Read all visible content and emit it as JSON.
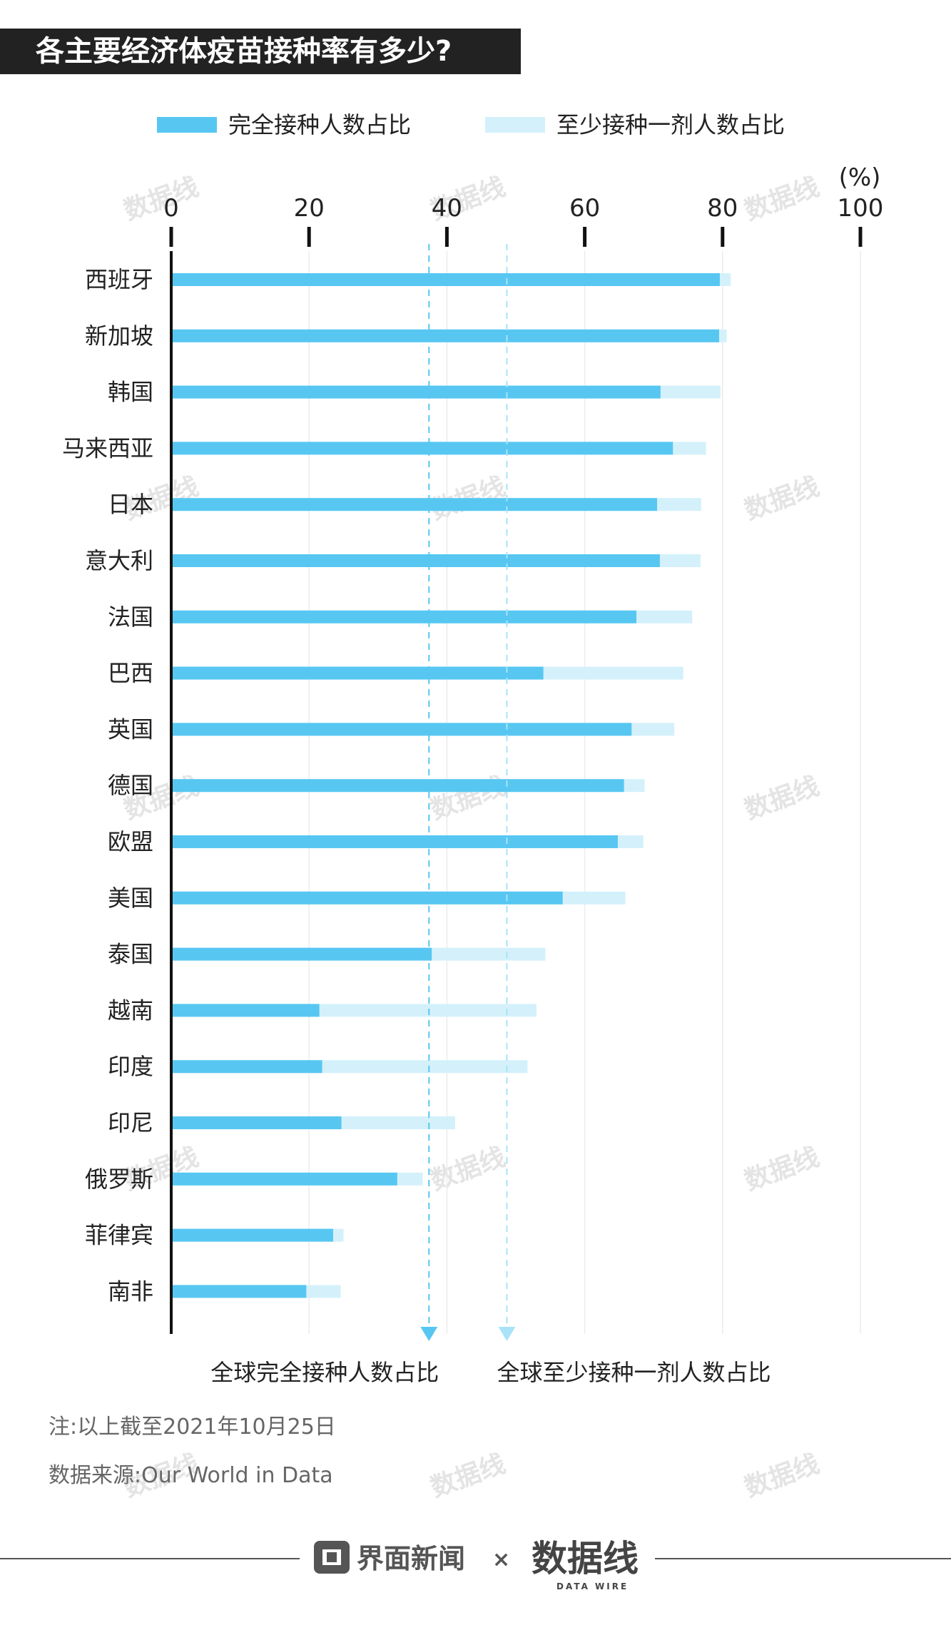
{
  "title": "各主要经济体疫苗接种率有多少?",
  "legend": {
    "full_label": "完全接种人数占比",
    "partial_label": "至少接种一剂人数占比"
  },
  "colors": {
    "full": "#57c7f2",
    "partial": "#d4f1fb",
    "title_bg": "#222222"
  },
  "chart_data": {
    "type": "bar",
    "orientation": "horizontal",
    "unit_label": "(%)",
    "xlim": [
      0,
      100
    ],
    "xticks": [
      0,
      20,
      40,
      60,
      80,
      100
    ],
    "categories": [
      "西班牙",
      "新加坡",
      "韩国",
      "马来西亚",
      "日本",
      "意大利",
      "法国",
      "巴西",
      "英国",
      "德国",
      "欧盟",
      "美国",
      "泰国",
      "越南",
      "印度",
      "印尼",
      "俄罗斯",
      "菲律宾",
      "南非"
    ],
    "series": [
      {
        "name": "完全接种人数占比",
        "values": [
          79.6,
          79.5,
          71.0,
          72.8,
          70.5,
          70.9,
          67.5,
          54.0,
          66.8,
          65.7,
          64.8,
          56.8,
          37.8,
          21.5,
          21.9,
          24.7,
          32.8,
          23.5,
          19.6
        ]
      },
      {
        "name": "至少接种一剂人数占比",
        "values": [
          81.2,
          80.6,
          79.7,
          77.6,
          76.9,
          76.8,
          75.6,
          74.3,
          73.0,
          68.7,
          68.5,
          65.9,
          54.3,
          53.0,
          51.7,
          41.2,
          36.5,
          25.0,
          24.6
        ]
      }
    ],
    "reference_lines": [
      {
        "label": "全球完全接种人数占比",
        "value": 37.4
      },
      {
        "label": "全球至少接种一剂人数占比",
        "value": 48.7
      }
    ]
  },
  "footer": {
    "note": "注:以上截至2021年10月25日",
    "source": "数据来源:Our World in Data",
    "brand_left": "界面新闻",
    "brand_sep": "×",
    "brand_right": "数据线",
    "brand_right_sub": "DATA WIRE"
  }
}
